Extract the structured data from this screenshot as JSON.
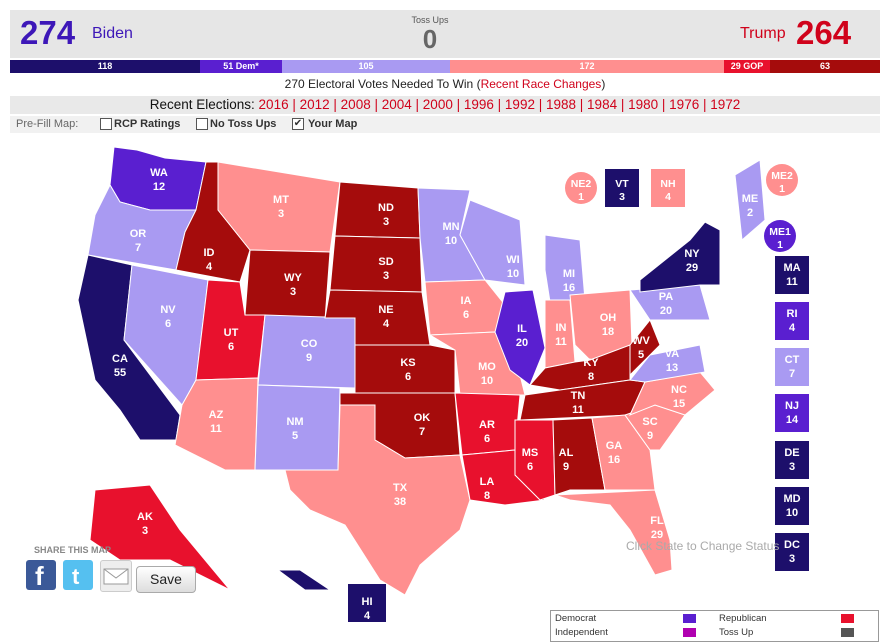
{
  "colors": {
    "safe_dem": "#1d0f6b",
    "likely_dem": "#5a1fd0",
    "lean_dem": "#a99af2",
    "lean_gop": "#ff8f8f",
    "likely_gop": "#e8112d",
    "safe_gop": "#a50c0c",
    "toss_up": "#8c8c8c"
  },
  "header": {
    "biden_total": "274",
    "biden_label": "Biden",
    "tossup_label": "Toss Ups",
    "tossup_total": "0",
    "trump_label": "Trump",
    "trump_total": "264"
  },
  "bar": {
    "safe_dem": "118",
    "likely_dem": "51 Dem*",
    "lean_dem": "105",
    "lean_gop": "172",
    "likely_gop": "29 GOP",
    "safe_gop": "63"
  },
  "needed": {
    "text": "270 Electoral Votes Needed To Win (",
    "link": "Recent Race Changes",
    "close": ")"
  },
  "recent": {
    "label": "Recent Elections:",
    "years": [
      "2016",
      "2012",
      "2008",
      "2004",
      "2000",
      "1996",
      "1992",
      "1988",
      "1984",
      "1980",
      "1976",
      "1972"
    ]
  },
  "prefill": {
    "label": "Pre-Fill Map:",
    "options": [
      {
        "label": "RCP Ratings",
        "checked": false
      },
      {
        "label": "No Toss Ups",
        "checked": false
      },
      {
        "label": "Your Map",
        "checked": true
      }
    ]
  },
  "states": [
    {
      "abbr": "WA",
      "ev": "12",
      "rating": "likely_dem"
    },
    {
      "abbr": "OR",
      "ev": "7",
      "rating": "lean_dem"
    },
    {
      "abbr": "CA",
      "ev": "55",
      "rating": "safe_dem"
    },
    {
      "abbr": "NV",
      "ev": "6",
      "rating": "lean_dem"
    },
    {
      "abbr": "ID",
      "ev": "4",
      "rating": "safe_gop"
    },
    {
      "abbr": "MT",
      "ev": "3",
      "rating": "lean_gop"
    },
    {
      "abbr": "WY",
      "ev": "3",
      "rating": "safe_gop"
    },
    {
      "abbr": "UT",
      "ev": "6",
      "rating": "likely_gop"
    },
    {
      "abbr": "AZ",
      "ev": "11",
      "rating": "lean_gop"
    },
    {
      "abbr": "CO",
      "ev": "9",
      "rating": "lean_dem"
    },
    {
      "abbr": "NM",
      "ev": "5",
      "rating": "lean_dem"
    },
    {
      "abbr": "ND",
      "ev": "3",
      "rating": "safe_gop"
    },
    {
      "abbr": "SD",
      "ev": "3",
      "rating": "safe_gop"
    },
    {
      "abbr": "NE",
      "ev": "4",
      "rating": "safe_gop"
    },
    {
      "abbr": "KS",
      "ev": "6",
      "rating": "safe_gop"
    },
    {
      "abbr": "OK",
      "ev": "7",
      "rating": "safe_gop"
    },
    {
      "abbr": "TX",
      "ev": "38",
      "rating": "lean_gop"
    },
    {
      "abbr": "MN",
      "ev": "10",
      "rating": "lean_dem"
    },
    {
      "abbr": "IA",
      "ev": "6",
      "rating": "lean_gop"
    },
    {
      "abbr": "MO",
      "ev": "10",
      "rating": "lean_gop"
    },
    {
      "abbr": "AR",
      "ev": "6",
      "rating": "likely_gop"
    },
    {
      "abbr": "LA",
      "ev": "8",
      "rating": "likely_gop"
    },
    {
      "abbr": "WI",
      "ev": "10",
      "rating": "lean_dem"
    },
    {
      "abbr": "IL",
      "ev": "20",
      "rating": "likely_dem"
    },
    {
      "abbr": "MI",
      "ev": "16",
      "rating": "lean_dem"
    },
    {
      "abbr": "IN",
      "ev": "11",
      "rating": "lean_gop"
    },
    {
      "abbr": "OH",
      "ev": "18",
      "rating": "lean_gop"
    },
    {
      "abbr": "KY",
      "ev": "8",
      "rating": "safe_gop"
    },
    {
      "abbr": "TN",
      "ev": "11",
      "rating": "safe_gop"
    },
    {
      "abbr": "MS",
      "ev": "6",
      "rating": "likely_gop"
    },
    {
      "abbr": "AL",
      "ev": "9",
      "rating": "safe_gop"
    },
    {
      "abbr": "GA",
      "ev": "16",
      "rating": "lean_gop"
    },
    {
      "abbr": "FL",
      "ev": "29",
      "rating": "lean_gop"
    },
    {
      "abbr": "SC",
      "ev": "9",
      "rating": "lean_gop"
    },
    {
      "abbr": "NC",
      "ev": "15",
      "rating": "lean_gop"
    },
    {
      "abbr": "VA",
      "ev": "13",
      "rating": "lean_dem"
    },
    {
      "abbr": "WV",
      "ev": "5",
      "rating": "safe_gop"
    },
    {
      "abbr": "PA",
      "ev": "20",
      "rating": "lean_dem"
    },
    {
      "abbr": "NY",
      "ev": "29",
      "rating": "safe_dem"
    },
    {
      "abbr": "ME",
      "ev": "2",
      "rating": "lean_dem"
    },
    {
      "abbr": "AK",
      "ev": "3",
      "rating": "likely_gop"
    },
    {
      "abbr": "HI",
      "ev": "4",
      "rating": "safe_dem"
    }
  ],
  "top_boxes": [
    {
      "abbr": "NE2",
      "ev": "1",
      "rating": "lean_gop",
      "shape": "circle"
    },
    {
      "abbr": "VT",
      "ev": "3",
      "rating": "safe_dem",
      "shape": "square"
    },
    {
      "abbr": "NH",
      "ev": "4",
      "rating": "lean_gop",
      "shape": "square"
    },
    {
      "abbr": "ME2",
      "ev": "1",
      "rating": "lean_gop",
      "shape": "circle"
    },
    {
      "abbr": "ME1",
      "ev": "1",
      "rating": "likely_dem",
      "shape": "circle"
    }
  ],
  "side_boxes": [
    {
      "abbr": "MA",
      "ev": "11",
      "rating": "safe_dem"
    },
    {
      "abbr": "RI",
      "ev": "4",
      "rating": "likely_dem"
    },
    {
      "abbr": "CT",
      "ev": "7",
      "rating": "lean_dem"
    },
    {
      "abbr": "NJ",
      "ev": "14",
      "rating": "likely_dem"
    },
    {
      "abbr": "DE",
      "ev": "3",
      "rating": "safe_dem"
    },
    {
      "abbr": "MD",
      "ev": "10",
      "rating": "safe_dem"
    },
    {
      "abbr": "DC",
      "ev": "3",
      "rating": "safe_dem"
    }
  ],
  "share": {
    "label": "SHARE THIS MAP",
    "save": "Save"
  },
  "click_hint": "Click State to Change Status",
  "legend": {
    "democrat": "Democrat",
    "independent": "Independent",
    "republican": "Republican",
    "tossup": "Toss Up",
    "colors": {
      "democrat": "#5a1fd0",
      "independent": "#b000b0",
      "republican": "#e8112d",
      "tossup": "#555555"
    }
  }
}
